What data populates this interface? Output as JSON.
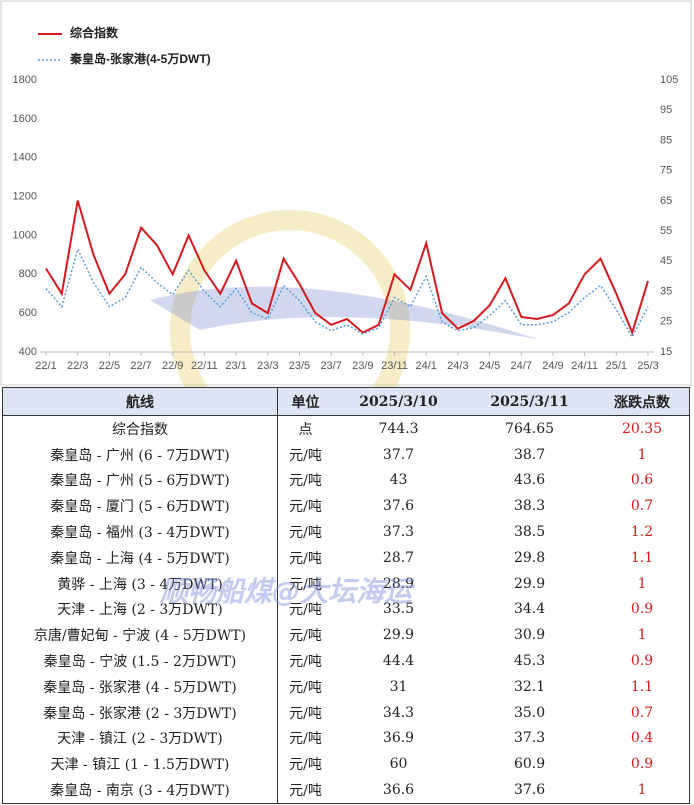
{
  "chart_data": {
    "type": "line",
    "x": [
      "22/1",
      null,
      "22/3",
      null,
      "22/5",
      null,
      "22/7",
      null,
      "22/9",
      null,
      "22/11",
      null,
      "23/1",
      null,
      "23/3",
      null,
      "23/5",
      null,
      "23/7",
      null,
      "23/9",
      null,
      "23/11",
      null,
      "24/1",
      null,
      "24/3",
      null,
      "24/5",
      null,
      "24/7",
      null,
      "24/9",
      null,
      "24/11",
      null,
      "25/1",
      null,
      "25/3"
    ],
    "series": [
      {
        "name": "综合指数",
        "color": "#d7191c",
        "values": [
          830,
          700,
          1180,
          900,
          700,
          800,
          1040,
          950,
          800,
          1000,
          820,
          700,
          870,
          650,
          600,
          880,
          750,
          600,
          540,
          570,
          500,
          540,
          800,
          720,
          960,
          600,
          520,
          560,
          640,
          780,
          580,
          570,
          590,
          650,
          800,
          880,
          700,
          500,
          765
        ]
      },
      {
        "name": "秦皇岛-张家港(4-5万DWT)",
        "color": "#5b9bd5",
        "axis": "y2",
        "values": [
          36,
          30,
          49,
          38,
          30,
          33,
          43,
          38,
          34,
          42,
          35,
          30,
          36,
          28,
          26,
          37,
          32,
          25,
          22,
          24,
          21,
          23,
          33,
          30,
          40,
          25,
          22,
          23,
          27,
          32,
          24,
          24,
          25,
          28,
          33,
          37,
          29,
          20,
          30
        ]
      }
    ],
    "ylim": [
      400,
      1800
    ],
    "yticks": [
      400,
      600,
      800,
      1000,
      1200,
      1400,
      1600,
      1800
    ],
    "y2lim": [
      15,
      105
    ],
    "y2ticks": [
      15,
      25,
      35,
      45,
      55,
      65,
      75,
      85,
      95,
      105
    ],
    "watermark": "顺畅船煤@大坛海运"
  },
  "table": {
    "header": [
      "航线",
      "单位",
      "2025/3/10",
      "2025/3/11",
      "涨跌点数"
    ],
    "rows": [
      [
        "综合指数",
        "点",
        "744.3",
        "764.65",
        "20.35"
      ],
      [
        "秦皇岛 - 广州 (6 - 7万DWT)",
        "元/吨",
        "37.7",
        "38.7",
        "1"
      ],
      [
        "秦皇岛 - 广州 (5 - 6万DWT)",
        "元/吨",
        "43",
        "43.6",
        "0.6"
      ],
      [
        "秦皇岛 - 厦门 (5 - 6万DWT)",
        "元/吨",
        "37.6",
        "38.3",
        "0.7"
      ],
      [
        "秦皇岛 - 福州 (3 - 4万DWT)",
        "元/吨",
        "37.3",
        "38.5",
        "1.2"
      ],
      [
        "秦皇岛 - 上海 (4 - 5万DWT)",
        "元/吨",
        "28.7",
        "29.8",
        "1.1"
      ],
      [
        "黄骅 - 上海 (3 - 4万DWT)",
        "元/吨",
        "28.9",
        "29.9",
        "1"
      ],
      [
        "天津 - 上海 (2 - 3万DWT)",
        "元/吨",
        "33.5",
        "34.4",
        "0.9"
      ],
      [
        "京唐/曹妃甸 - 宁波 (4 - 5万DWT)",
        "元/吨",
        "29.9",
        "30.9",
        "1"
      ],
      [
        "秦皇岛 - 宁波 (1.5 - 2万DWT)",
        "元/吨",
        "44.4",
        "45.3",
        "0.9"
      ],
      [
        "秦皇岛 - 张家港 (4 - 5万DWT)",
        "元/吨",
        "31",
        "32.1",
        "1.1"
      ],
      [
        "秦皇岛 - 张家港 (2 - 3万DWT)",
        "元/吨",
        "34.3",
        "35.0",
        "0.7"
      ],
      [
        "天津 - 镇江 (2 - 3万DWT)",
        "元/吨",
        "36.9",
        "37.3",
        "0.4"
      ],
      [
        "天津 - 镇江 (1 - 1.5万DWT)",
        "元/吨",
        "60",
        "60.9",
        "0.9"
      ],
      [
        "秦皇岛 - 南京 (3 - 4万DWT)",
        "元/吨",
        "36.6",
        "37.6",
        "1"
      ]
    ]
  }
}
